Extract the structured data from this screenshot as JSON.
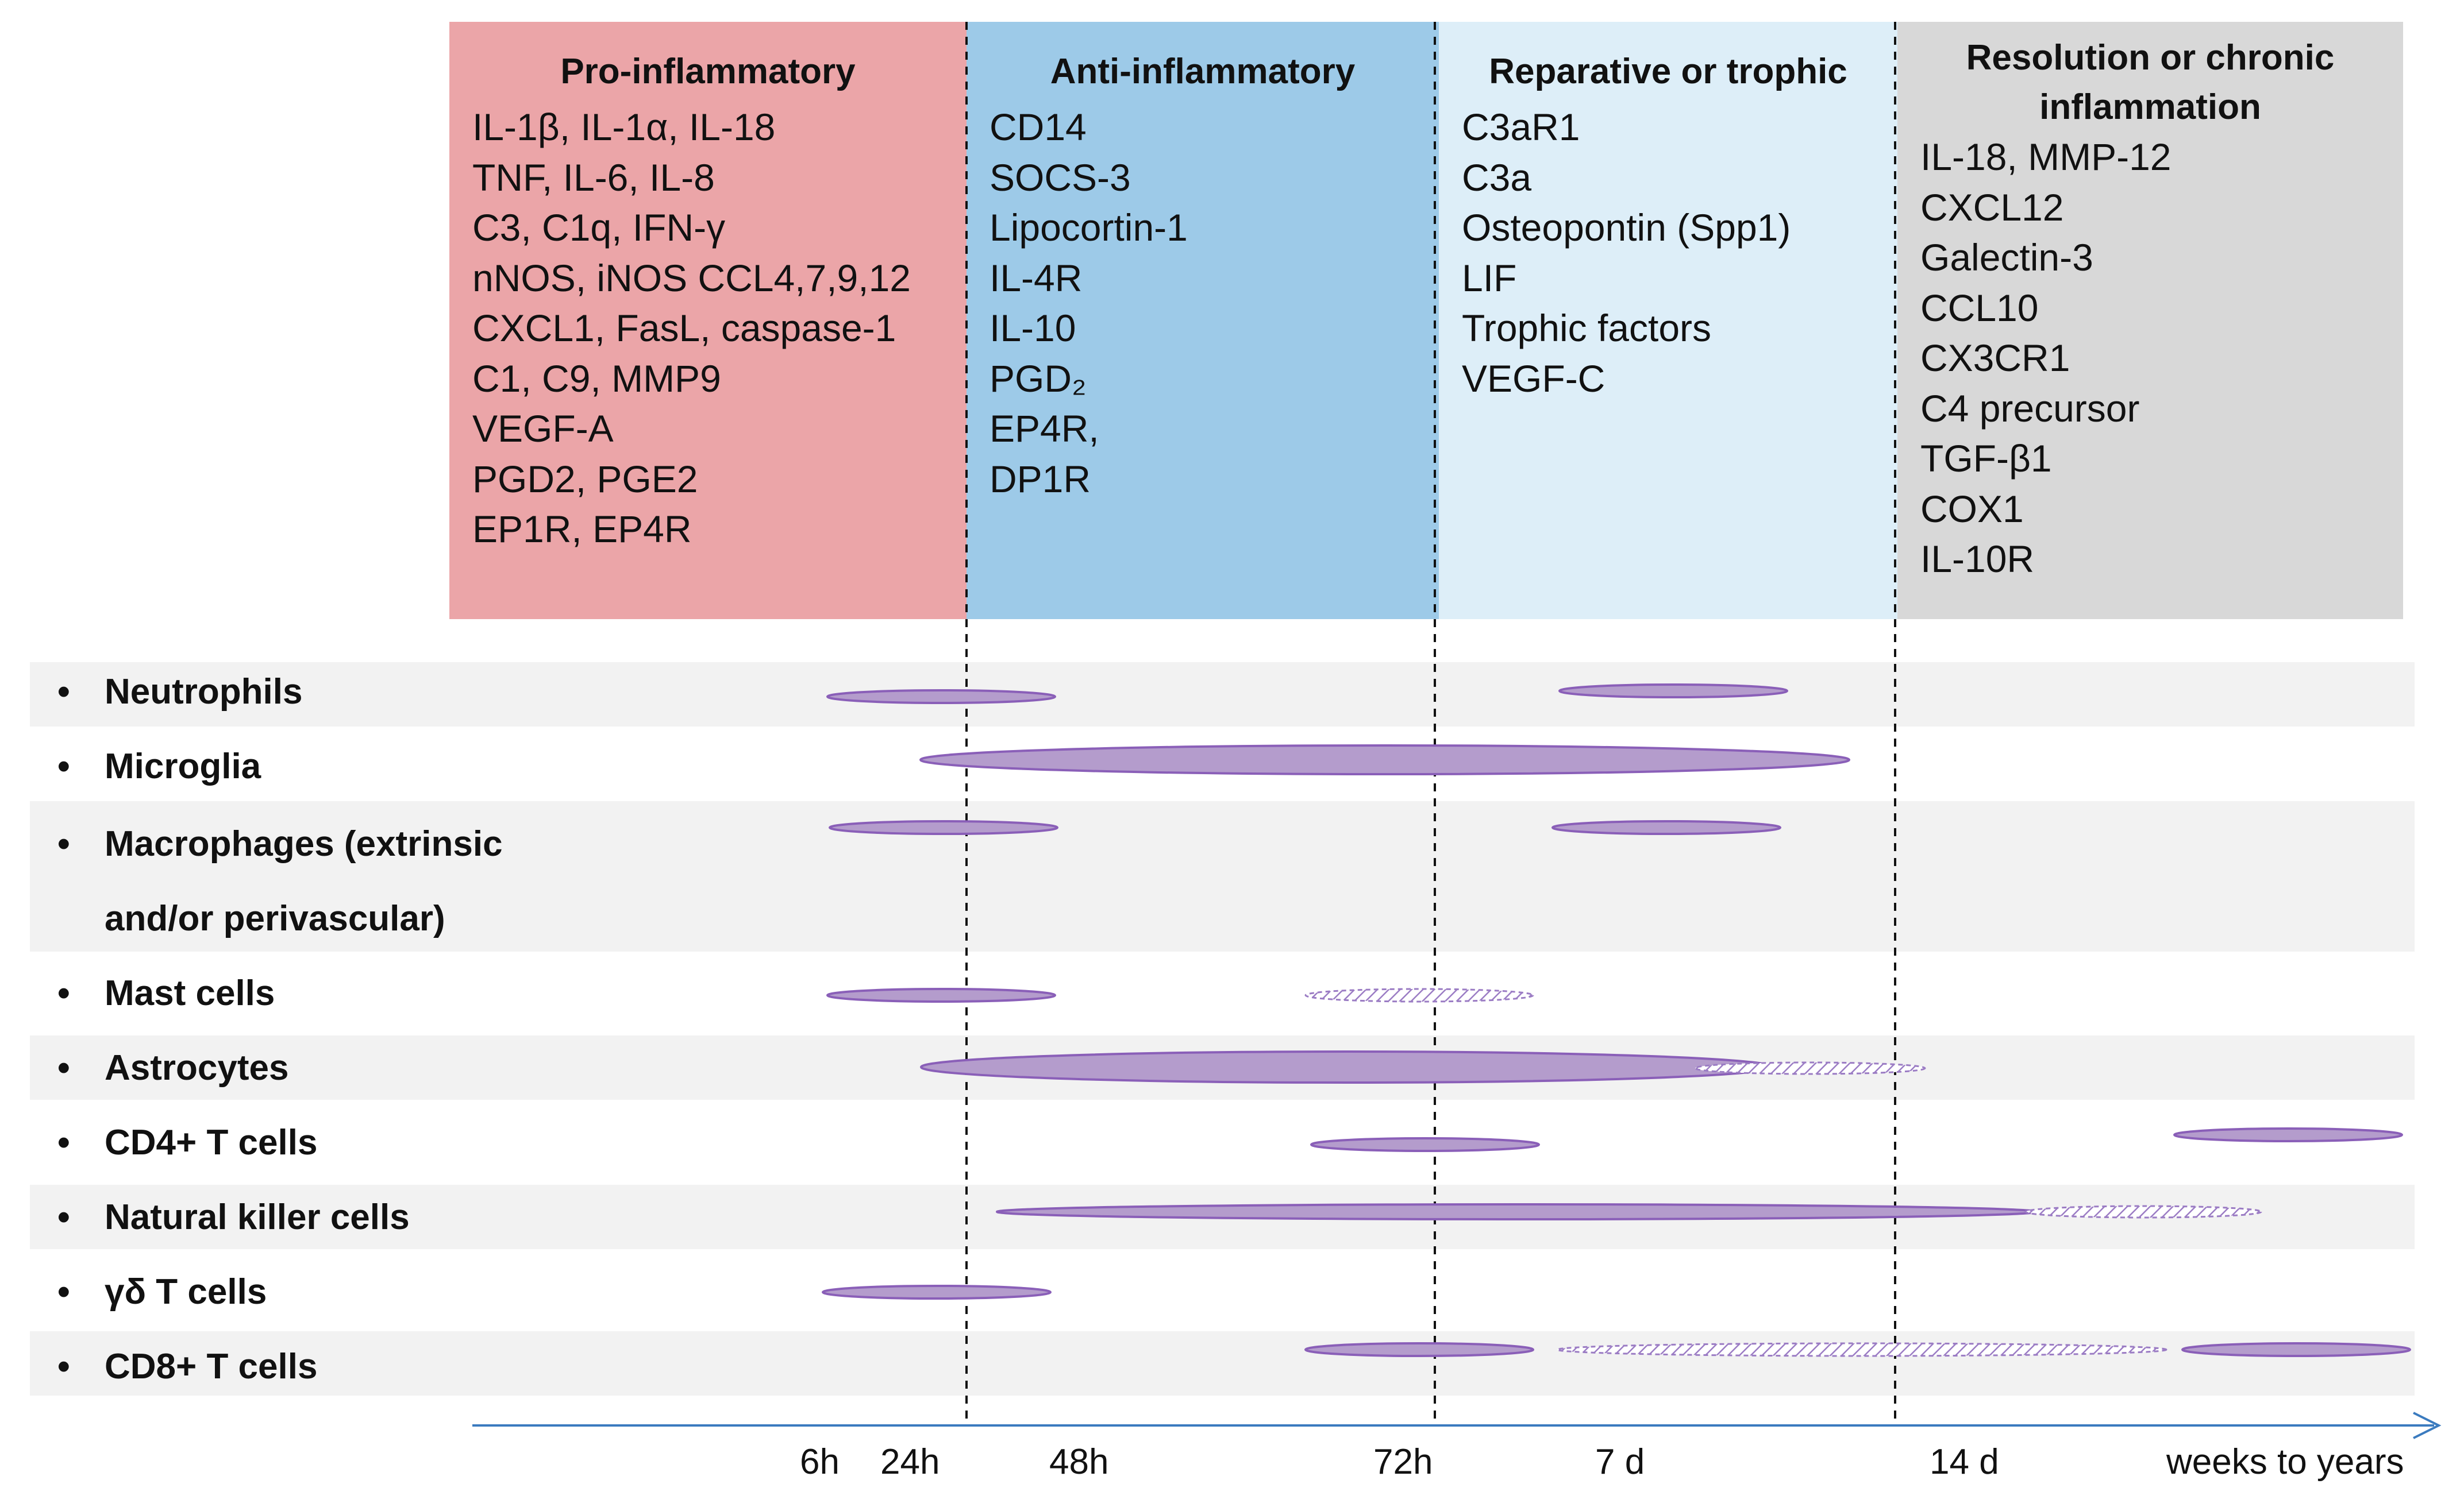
{
  "phases": [
    {
      "title": "Pro-inflammatory",
      "items": [
        "IL-1β, IL-1α, IL-18",
        "TNF, IL-6, IL-8",
        "C3, C1q, IFN-γ",
        "nNOS, iNOS CCL4,7,9,12",
        "CXCL1, FasL, caspase-1",
        "C1, C9, MMP9",
        "VEGF-A",
        "PGD2, PGE2",
        "EP1R, EP4R"
      ]
    },
    {
      "title": "Anti-inflammatory",
      "items": [
        "CD14",
        "SOCS-3",
        "Lipocortin-1",
        "IL-4R",
        "IL-10",
        "PGD₂",
        "EP4R,",
        "DP1R"
      ]
    },
    {
      "title": "Reparative or trophic",
      "items": [
        "C3aR1",
        "C3a",
        "Osteopontin (Spp1)",
        "LIF",
        "Trophic factors",
        "VEGF-C"
      ]
    },
    {
      "title": "Resolution or chronic inflammation",
      "items": [
        "IL-18, MMP-12",
        "CXCL12",
        "Galectin-3",
        "CCL10",
        "CX3CR1",
        "C4 precursor",
        "TGF-β1",
        "COX1",
        "IL-10R"
      ]
    }
  ],
  "bullet": "•",
  "cell_types": [
    "Neutrophils",
    "Microglia",
    "Macrophages (extrinsic",
    "and/or perivascular)",
    "Mast cells",
    "Astrocytes",
    "CD4+ T cells",
    "Natural killer cells",
    "γδ T cells",
    "CD8+ T cells"
  ],
  "timeline_ticks": [
    "6h",
    "24h",
    "48h",
    "72h",
    "7 d",
    "14 d",
    "weeks to years"
  ],
  "colors": {
    "pro": "#eba5a8",
    "anti": "#9dcae8",
    "reparative": "#ddeef8",
    "resolution": "#d8d8d8",
    "bar_fill": "#b49ccc",
    "bar_stroke": "#8a5fb8",
    "axis": "#3b7bbf"
  }
}
